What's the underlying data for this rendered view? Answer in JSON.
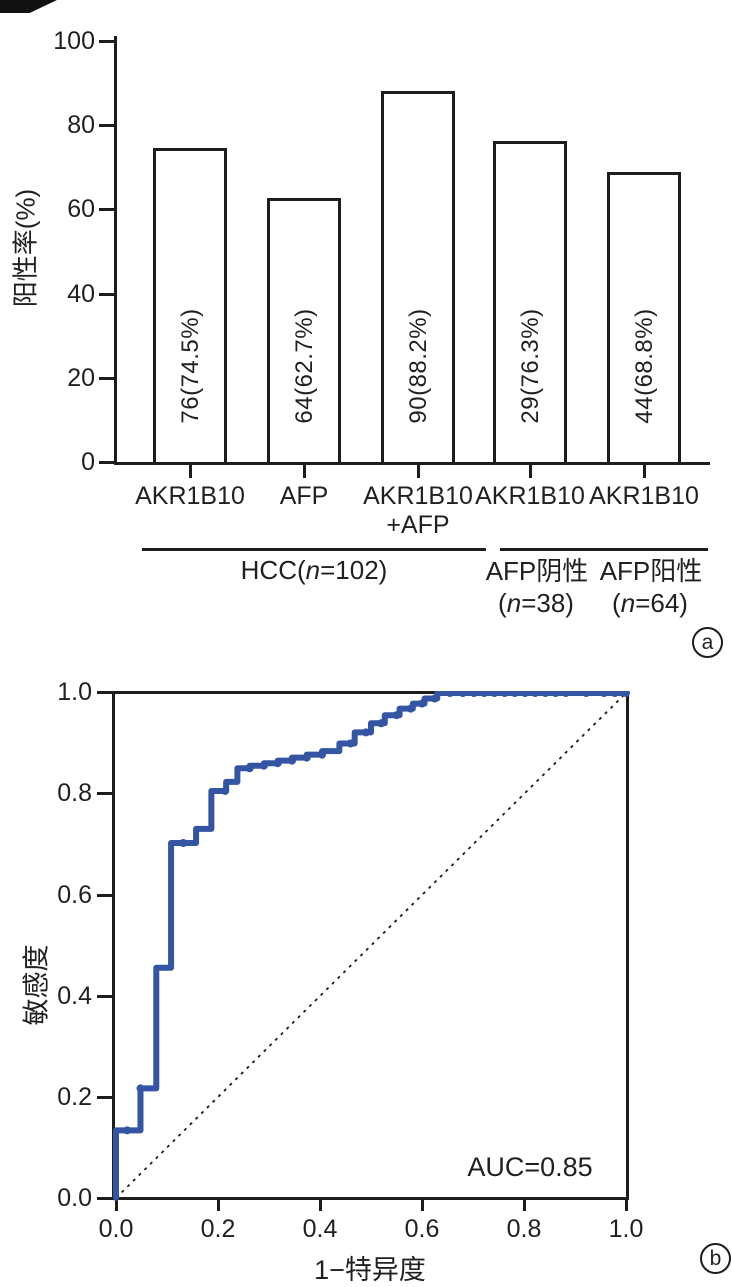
{
  "colors": {
    "ink": "#231f20",
    "line": "#1d1d1b",
    "roc_blue": "#3355a3",
    "background": "#ffffff"
  },
  "panel_a": {
    "tag": "a",
    "y_axis_label": "阳性率(%)",
    "y_ticks": [
      {
        "label": "100",
        "value": 100
      },
      {
        "label": "80",
        "value": 80
      },
      {
        "label": "60",
        "value": 60
      },
      {
        "label": "40",
        "value": 40
      },
      {
        "label": "20",
        "value": 20
      },
      {
        "label": "0",
        "value": 0
      }
    ],
    "bars": [
      {
        "category": "AKR1B10",
        "category_line2": "",
        "label": "76(74.5%)",
        "percent": 74.5
      },
      {
        "category": "AFP",
        "category_line2": "",
        "label": "64(62.7%)",
        "percent": 62.7
      },
      {
        "category": "AKR1B10",
        "category_line2": "+AFP",
        "label": "90(88.2%)",
        "percent": 88.2
      },
      {
        "category": "AKR1B10",
        "category_line2": "",
        "label": "29(76.3%)",
        "percent": 76.3
      },
      {
        "category": "AKR1B10",
        "category_line2": "",
        "label": "44(68.8%)",
        "percent": 68.8
      }
    ],
    "groups": {
      "group1": {
        "pre": "HCC(",
        "n": "n",
        "post": "=102)"
      },
      "group2_title": "AFP阴性",
      "group2_sub": {
        "pre": "(",
        "n": "n",
        "post": "=38)"
      },
      "group3_title": "AFP阳性",
      "group3_sub": {
        "pre": "(",
        "n": "n",
        "post": "=64)"
      }
    }
  },
  "panel_b": {
    "tag": "b",
    "y_axis_label": "敏感度",
    "x_axis_label": "1−特异度",
    "x_ticks": [
      "0.0",
      "0.2",
      "0.4",
      "0.6",
      "0.8",
      "1.0"
    ],
    "y_ticks": [
      "1.0",
      "0.8",
      "0.6",
      "0.4",
      "0.2",
      "0.0"
    ],
    "auc_label": "AUC=0.85"
  },
  "chart_data": [
    {
      "type": "bar",
      "panel": "a",
      "title": "",
      "xlabel": "",
      "ylabel": "阳性率(%)",
      "ylim": [
        0,
        100
      ],
      "yticks": [
        0,
        20,
        40,
        60,
        80,
        100
      ],
      "categories": [
        "AKR1B10",
        "AFP",
        "AKR1B10+AFP",
        "AKR1B10",
        "AKR1B10"
      ],
      "values": [
        74.5,
        62.7,
        88.2,
        76.3,
        68.8
      ],
      "bar_labels": [
        "76(74.5%)",
        "64(62.7%)",
        "90(88.2%)",
        "29(76.3%)",
        "44(68.8%)"
      ],
      "groups": [
        {
          "label": "HCC(n=102)",
          "bar_indexes": [
            0,
            1,
            2
          ]
        },
        {
          "label": "AFP阴性(n=38)",
          "bar_indexes": [
            3
          ]
        },
        {
          "label": "AFP阳性(n=64)",
          "bar_indexes": [
            4
          ]
        }
      ],
      "bar_fill": "#ffffff",
      "bar_edge": "#1d1d1b",
      "grid": false
    },
    {
      "type": "line",
      "panel": "b",
      "title": "",
      "xlabel": "1−特异度",
      "ylabel": "敏感度",
      "xlim": [
        0,
        1
      ],
      "ylim": [
        0,
        1
      ],
      "xticks": [
        0.0,
        0.2,
        0.4,
        0.6,
        0.8,
        1.0
      ],
      "yticks": [
        0.0,
        0.2,
        0.4,
        0.6,
        0.8,
        1.0
      ],
      "annotation": "AUC=0.85",
      "auc": 0.85,
      "diagonal_reference": true,
      "grid": false,
      "legend": "none",
      "series": [
        {
          "name": "ROC curve",
          "color": "#3355a3",
          "points": [
            [
              0,
              0
            ],
            [
              0,
              0.134
            ],
            [
              0.048,
              0.134
            ],
            [
              0.048,
              0.217
            ],
            [
              0.079,
              0.217
            ],
            [
              0.079,
              0.456
            ],
            [
              0.108,
              0.456
            ],
            [
              0.108,
              0.703
            ],
            [
              0.157,
              0.703
            ],
            [
              0.157,
              0.731
            ],
            [
              0.187,
              0.731
            ],
            [
              0.187,
              0.806
            ],
            [
              0.216,
              0.806
            ],
            [
              0.216,
              0.824
            ],
            [
              0.238,
              0.824
            ],
            [
              0.238,
              0.851
            ],
            [
              0.262,
              0.851
            ],
            [
              0.262,
              0.856
            ],
            [
              0.29,
              0.856
            ],
            [
              0.29,
              0.861
            ],
            [
              0.317,
              0.861
            ],
            [
              0.317,
              0.866
            ],
            [
              0.345,
              0.866
            ],
            [
              0.345,
              0.872
            ],
            [
              0.374,
              0.872
            ],
            [
              0.374,
              0.878
            ],
            [
              0.404,
              0.878
            ],
            [
              0.404,
              0.885
            ],
            [
              0.438,
              0.885
            ],
            [
              0.438,
              0.9
            ],
            [
              0.468,
              0.9
            ],
            [
              0.468,
              0.922
            ],
            [
              0.5,
              0.922
            ],
            [
              0.5,
              0.94
            ],
            [
              0.527,
              0.94
            ],
            [
              0.527,
              0.956
            ],
            [
              0.556,
              0.956
            ],
            [
              0.556,
              0.969
            ],
            [
              0.582,
              0.969
            ],
            [
              0.582,
              0.979
            ],
            [
              0.605,
              0.979
            ],
            [
              0.605,
              0.989
            ],
            [
              0.63,
              0.989
            ],
            [
              0.63,
              1
            ],
            [
              1,
              1
            ]
          ],
          "markers": [
            [
              0.022,
              0.134
            ],
            [
              0.048,
              0.217
            ],
            [
              0.132,
              0.703
            ],
            [
              0.214,
              0.806
            ],
            [
              0.262,
              0.851
            ],
            [
              0.29,
              0.856
            ],
            [
              0.317,
              0.861
            ],
            [
              0.345,
              0.866
            ],
            [
              0.374,
              0.872
            ],
            [
              0.404,
              0.878
            ],
            [
              0.46,
              0.9
            ],
            [
              0.49,
              0.922
            ],
            [
              0.52,
              0.94
            ],
            [
              0.55,
              0.956
            ],
            [
              0.578,
              0.969
            ],
            [
              0.6,
              0.979
            ],
            [
              0.625,
              0.989
            ],
            [
              0.655,
              1
            ],
            [
              0.68,
              1
            ],
            [
              0.702,
              1
            ],
            [
              0.722,
              1
            ],
            [
              0.742,
              1
            ],
            [
              0.762,
              1
            ],
            [
              0.782,
              1
            ],
            [
              0.802,
              1
            ],
            [
              0.822,
              1
            ],
            [
              0.842,
              1
            ],
            [
              0.862,
              1
            ],
            [
              0.882,
              1
            ],
            [
              0.922,
              1
            ],
            [
              0.957,
              1
            ],
            [
              0.978,
              1
            ],
            [
              1,
              1
            ]
          ]
        }
      ]
    }
  ]
}
